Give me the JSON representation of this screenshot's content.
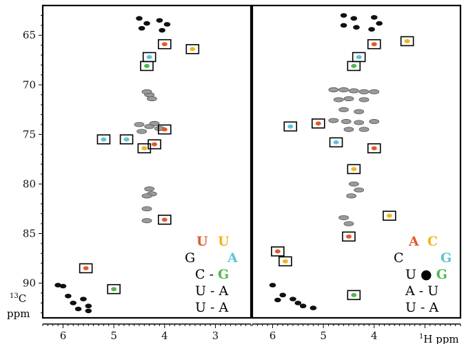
{
  "chart_data": [
    {
      "type": "scatter",
      "panel": "left",
      "xlim": [
        6.4,
        2.3
      ],
      "ylim": [
        62,
        93.5
      ],
      "x_ticks": [
        "6",
        "5",
        "4",
        "3"
      ],
      "y_ticks": [
        "65",
        "70",
        "75",
        "80",
        "85",
        "90"
      ],
      "grey_peaks": [
        [
          4.3,
          71
        ],
        [
          4.25,
          71.4
        ],
        [
          4.35,
          70.7
        ],
        [
          4.5,
          74
        ],
        [
          4.3,
          74.2
        ],
        [
          4.2,
          73.9
        ],
        [
          4.1,
          74.4
        ],
        [
          4.45,
          74.7
        ],
        [
          4.3,
          80.5
        ],
        [
          4.25,
          81
        ],
        [
          4.35,
          81.2
        ],
        [
          4.35,
          82.5
        ],
        [
          4.35,
          83.7
        ]
      ],
      "black_peaks": [
        [
          4.5,
          63.3
        ],
        [
          4.35,
          63.8
        ],
        [
          4.45,
          64.3
        ],
        [
          4.1,
          63.5
        ],
        [
          3.95,
          63.9
        ],
        [
          4.05,
          64.5
        ],
        [
          6.1,
          90.2
        ],
        [
          5.9,
          91.3
        ],
        [
          5.8,
          92
        ],
        [
          5.6,
          91.6
        ],
        [
          5.5,
          92.3
        ],
        [
          5.7,
          92.6
        ],
        [
          5.5,
          92.8
        ],
        [
          6.0,
          90.3
        ]
      ],
      "boxed_peaks": [
        {
          "x": 4.0,
          "y": 65.9,
          "color": "#e05a2b"
        },
        {
          "x": 3.45,
          "y": 66.4,
          "color": "#f2b51c"
        },
        {
          "x": 4.3,
          "y": 67.2,
          "color": "#5bc4d8"
        },
        {
          "x": 4.35,
          "y": 68.1,
          "color": "#4fb84f"
        },
        {
          "x": 4.0,
          "y": 74.5,
          "color": "#e05a2b"
        },
        {
          "x": 5.2,
          "y": 75.5,
          "color": "#5bc4d8"
        },
        {
          "x": 4.75,
          "y": 75.5,
          "color": "#5bc4d8"
        },
        {
          "x": 4.2,
          "y": 76,
          "color": "#e05a2b"
        },
        {
          "x": 4.4,
          "y": 76.4,
          "color": "#f2b51c"
        },
        {
          "x": 4.0,
          "y": 83.6,
          "color": "#e05a2b"
        },
        {
          "x": 5.55,
          "y": 88.5,
          "color": "#e05a2b"
        },
        {
          "x": 5.0,
          "y": 90.6,
          "color": "#4fb84f"
        }
      ]
    },
    {
      "type": "scatter",
      "panel": "right",
      "xlim": [
        6.4,
        2.3
      ],
      "ylim": [
        62,
        93.5
      ],
      "x_ticks": [
        "6",
        "5",
        "4"
      ],
      "x_label": "1H ppm",
      "grey_peaks": [
        [
          4.8,
          70.5
        ],
        [
          4.6,
          70.5
        ],
        [
          4.4,
          70.6
        ],
        [
          4.2,
          70.7
        ],
        [
          4.0,
          70.7
        ],
        [
          4.7,
          71.5
        ],
        [
          4.5,
          71.4
        ],
        [
          4.2,
          71.5
        ],
        [
          4.6,
          72.5
        ],
        [
          4.3,
          72.7
        ],
        [
          4.8,
          73.6
        ],
        [
          4.55,
          73.7
        ],
        [
          4.3,
          73.8
        ],
        [
          4.0,
          73.7
        ],
        [
          4.5,
          74.5
        ],
        [
          4.2,
          74.5
        ],
        [
          4.4,
          80
        ],
        [
          4.3,
          80.6
        ],
        [
          4.45,
          81.2
        ],
        [
          4.6,
          83.4
        ],
        [
          4.5,
          84
        ]
      ],
      "black_peaks": [
        [
          4.6,
          63
        ],
        [
          4.4,
          63.3
        ],
        [
          4.6,
          64
        ],
        [
          4.35,
          64.2
        ],
        [
          4.0,
          63.2
        ],
        [
          3.9,
          63.8
        ],
        [
          4.05,
          64.4
        ],
        [
          6.0,
          90.2
        ],
        [
          5.8,
          91.2
        ],
        [
          5.6,
          91.6
        ],
        [
          5.4,
          92.3
        ],
        [
          5.2,
          92.5
        ],
        [
          5.9,
          91.7
        ],
        [
          5.5,
          92
        ]
      ],
      "boxed_peaks": [
        {
          "x": 4.0,
          "y": 65.9,
          "color": "#e05a2b"
        },
        {
          "x": 3.35,
          "y": 65.6,
          "color": "#f2b51c"
        },
        {
          "x": 4.3,
          "y": 67.2,
          "color": "#5bc4d8"
        },
        {
          "x": 4.4,
          "y": 68.1,
          "color": "#4fb84f"
        },
        {
          "x": 5.65,
          "y": 74.2,
          "color": "#5bc4d8"
        },
        {
          "x": 5.1,
          "y": 73.9,
          "color": "#e05a2b"
        },
        {
          "x": 4.75,
          "y": 75.8,
          "color": "#5bc4d8"
        },
        {
          "x": 4.0,
          "y": 76.4,
          "color": "#e05a2b"
        },
        {
          "x": 4.4,
          "y": 78.5,
          "color": "#f2b51c"
        },
        {
          "x": 3.7,
          "y": 83.2,
          "color": "#f2b51c"
        },
        {
          "x": 4.5,
          "y": 85.3,
          "color": "#e05a2b"
        },
        {
          "x": 5.9,
          "y": 86.8,
          "color": "#e05a2b"
        },
        {
          "x": 5.75,
          "y": 87.8,
          "color": "#f2b51c"
        },
        {
          "x": 4.4,
          "y": 91.2,
          "color": "#4fb84f"
        }
      ]
    }
  ],
  "y_axis_label": {
    "sup": "13",
    "text": "C",
    "unit": "ppm"
  },
  "legend_left": {
    "row1": [
      "U",
      "U"
    ],
    "row2": [
      "G",
      "A"
    ],
    "pairs": [
      [
        "C",
        " - ",
        "G"
      ],
      [
        "U",
        " - ",
        "A"
      ],
      [
        "U",
        " - ",
        "A"
      ]
    ]
  },
  "legend_right": {
    "row1": [
      "A",
      "C"
    ],
    "row2": [
      "C",
      "G"
    ],
    "pairs": [
      [
        "U",
        " ● ",
        "G"
      ],
      [
        "A",
        " - ",
        "U"
      ],
      [
        "U",
        " - ",
        "A"
      ]
    ]
  },
  "colors": {
    "orange_red": "#e05a2b",
    "yellow": "#f2b51c",
    "cyan": "#5bc4d8",
    "green": "#4fb84f",
    "grey_peak": "#8a8a8a",
    "black_peak": "#000000"
  }
}
